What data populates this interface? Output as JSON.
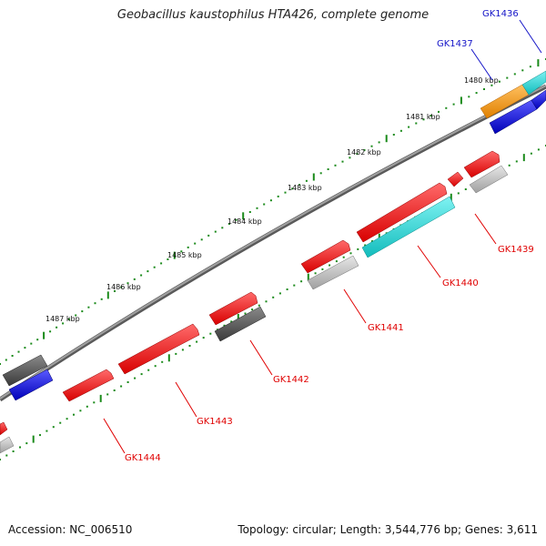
{
  "title": "Geobacillus kaustophilus HTA426, complete genome",
  "footer": {
    "accession": "Accession: NC_006510",
    "summary": "Topology: circular; Length: 3,544,776 bp; Genes: 3,611"
  },
  "scale_labels": [
    "1480 kbp",
    "1481 kbp",
    "1482 kbp",
    "1483 kbp",
    "1484 kbp",
    "1485 kbp",
    "1486 kbp",
    "1487 kbp"
  ],
  "genes": [
    {
      "label": "GK1436",
      "color": "#1414c8"
    },
    {
      "label": "GK1437",
      "color": "#1414c8"
    },
    {
      "label": "GK1439",
      "color": "#e00000"
    },
    {
      "label": "GK1440",
      "color": "#e00000"
    },
    {
      "label": "GK1441",
      "color": "#e00000"
    },
    {
      "label": "GK1442",
      "color": "#e00000"
    },
    {
      "label": "GK1443",
      "color": "#e00000"
    },
    {
      "label": "GK1444",
      "color": "#e00000"
    }
  ],
  "colors": {
    "backbone": "#808080",
    "tick": "#1a8a1a",
    "red_gene": "#ff1a1a",
    "cyan_gene": "#19d9d9",
    "blue_gene": "#1a1ad9",
    "orange_gene": "#f59a1a",
    "dark_gray_gene": "#555555",
    "light_gray_gene": "#bdbdbd"
  }
}
